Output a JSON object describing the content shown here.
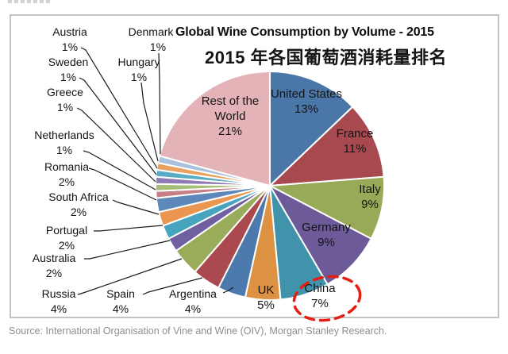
{
  "page": {
    "title": "Global Wine Consumption by Volume - 2015",
    "subtitle_cn": "2015 年各国葡萄酒消耗量排名",
    "source": "Source: International Organisation of Vine and Wine (OIV), Morgan Stanley Research.",
    "annotation": {
      "shape": "dashed-ellipse",
      "highlighted_slice": "China",
      "color": "#e51e16"
    }
  },
  "chart_data": {
    "type": "pie",
    "title": "Global Wine Consumption by Volume - 2015",
    "direction": "clockwise",
    "start_angle": "12-oclock",
    "legend": "none",
    "slices": [
      {
        "label": "United States",
        "pct": "13%",
        "value": 13,
        "color": "#4b76a8",
        "label_position": "inside"
      },
      {
        "label": "France",
        "pct": "11%",
        "value": 11,
        "color": "#a8494f",
        "label_position": "inside"
      },
      {
        "label": "Italy",
        "pct": "9%",
        "value": 9,
        "color": "#98a957",
        "label_position": "inside"
      },
      {
        "label": "Germany",
        "pct": "9%",
        "value": 9,
        "color": "#6d5a98",
        "label_position": "inside"
      },
      {
        "label": "China",
        "pct": "7%",
        "value": 7,
        "color": "#4193ab",
        "label_position": "inside"
      },
      {
        "label": "UK",
        "pct": "5%",
        "value": 5,
        "color": "#dd9143",
        "label_position": "inside"
      },
      {
        "label": "Argentina",
        "pct": "4%",
        "value": 4,
        "color": "#4d7aad",
        "label_position": "outside"
      },
      {
        "label": "Spain",
        "pct": "4%",
        "value": 4,
        "color": "#aa4a4f",
        "label_position": "outside"
      },
      {
        "label": "Russia",
        "pct": "4%",
        "value": 4,
        "color": "#99ac59",
        "label_position": "outside"
      },
      {
        "label": "Australia",
        "pct": "2%",
        "value": 2,
        "color": "#71609f",
        "label_position": "outside"
      },
      {
        "label": "Portugal",
        "pct": "2%",
        "value": 2,
        "color": "#46a4be",
        "label_position": "outside"
      },
      {
        "label": "South Africa",
        "pct": "2%",
        "value": 2,
        "color": "#ea9550",
        "label_position": "outside"
      },
      {
        "label": "Romania",
        "pct": "2%",
        "value": 2,
        "color": "#5d88b9",
        "label_position": "outside"
      },
      {
        "label": "Netherlands",
        "pct": "1%",
        "value": 1,
        "color": "#c67f85",
        "label_position": "outside"
      },
      {
        "label": "Greece",
        "pct": "1%",
        "value": 1,
        "color": "#a7be78",
        "label_position": "outside"
      },
      {
        "label": "Sweden",
        "pct": "1%",
        "value": 1,
        "color": "#8e7bb3",
        "label_position": "outside"
      },
      {
        "label": "Austria",
        "pct": "1%",
        "value": 1,
        "color": "#58adc4",
        "label_position": "outside"
      },
      {
        "label": "Hungary",
        "pct": "1%",
        "value": 1,
        "color": "#eaa15d",
        "label_position": "outside"
      },
      {
        "label": "Denmark",
        "pct": "1%",
        "value": 1,
        "color": "#aac1dd",
        "label_position": "outside"
      },
      {
        "label": "Rest of the World",
        "pct": "21%",
        "value": 21,
        "color": "#e3b3b7",
        "label_position": "inside"
      }
    ]
  }
}
